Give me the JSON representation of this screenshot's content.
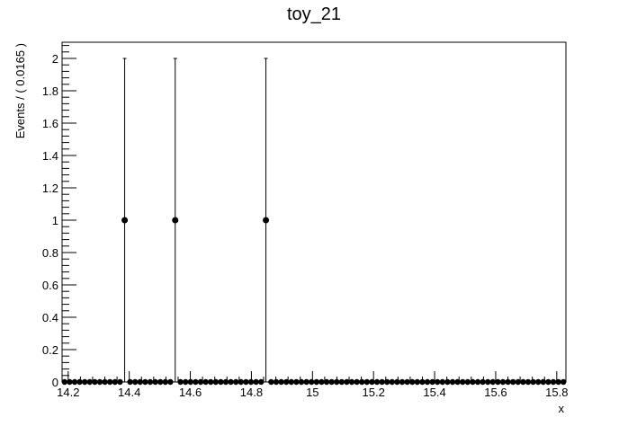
{
  "chart_data": {
    "type": "scatter",
    "title": "toy_21",
    "xlabel": "x",
    "ylabel": "Events / ( 0.0165 )",
    "xlim": [
      14.18,
      15.83
    ],
    "ylim": [
      0,
      2.1
    ],
    "bin_width": 0.0165,
    "x_ticks": [
      14.2,
      14.4,
      14.6,
      14.8,
      15,
      15.2,
      15.4,
      15.6,
      15.8
    ],
    "x_tick_labels": [
      "14.2",
      "14.4",
      "14.6",
      "14.8",
      "15",
      "15.2",
      "15.4",
      "15.6",
      "15.8"
    ],
    "y_ticks": [
      0,
      0.2,
      0.4,
      0.6,
      0.8,
      1,
      1.2,
      1.4,
      1.6,
      1.8,
      2
    ],
    "y_tick_labels": [
      "0",
      "0.2",
      "0.4",
      "0.6",
      "0.8",
      "1",
      "1.2",
      "1.4",
      "1.6",
      "1.8",
      "2"
    ],
    "grid": false,
    "legend": "none",
    "marker_color": "#000000",
    "nonzero_points": [
      {
        "x": 14.385,
        "y": 1,
        "err_low": 1,
        "err_high": 1
      },
      {
        "x": 14.5505,
        "y": 1,
        "err_low": 1,
        "err_high": 1
      },
      {
        "x": 14.8475,
        "y": 1,
        "err_low": 1,
        "err_high": 1
      }
    ],
    "zero_bins_value": 0
  }
}
